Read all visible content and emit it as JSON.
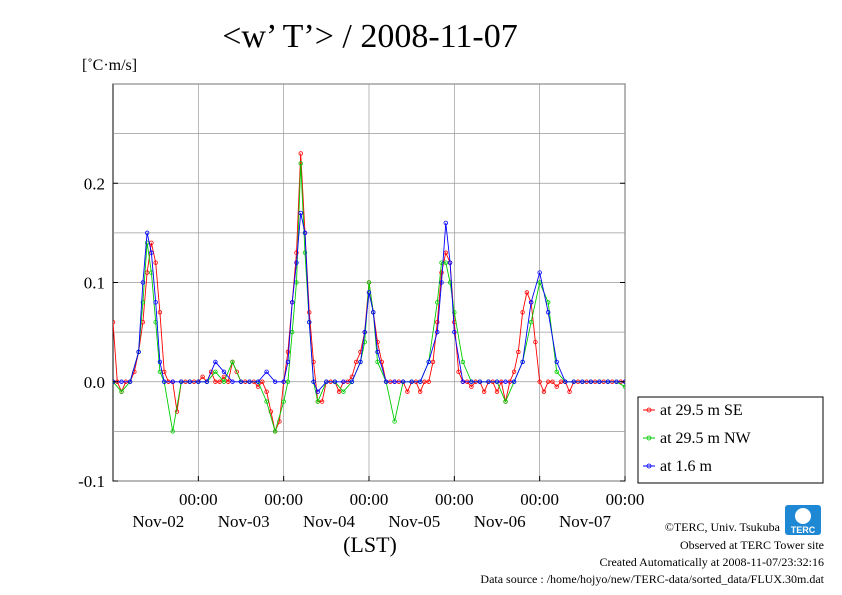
{
  "title": "<w’ T’> / 2008-11-07",
  "ylabel": "[˚C·m/s]",
  "xlabel": "(LST)",
  "credits": [
    "©TERC, Univ. Tsukuba",
    "Observed at TERC Tower site",
    "Created Automatically at 2008-11-07/23:32:16",
    "Data source : /home/hojyo/new/TERC-data/sorted_data/FLUX.30m.dat"
  ],
  "logo_text": "TERC",
  "chart_data": {
    "type": "line",
    "xlabel": "(LST)",
    "ylabel": "[˚C·m/s]",
    "ylim": [
      -0.1,
      0.3
    ],
    "xlim": [
      0,
      6
    ],
    "yticks": [
      {
        "value": -0.1,
        "label": "-0.1"
      },
      {
        "value": 0.0,
        "label": "0.0"
      },
      {
        "value": 0.1,
        "label": "0.1"
      },
      {
        "value": 0.2,
        "label": "0.2"
      }
    ],
    "xticks": [
      {
        "value": 1,
        "time": "00:00",
        "date": "Nov-02"
      },
      {
        "value": 2,
        "time": "00:00",
        "date": "Nov-03"
      },
      {
        "value": 3,
        "time": "00:00",
        "date": "Nov-04"
      },
      {
        "value": 4,
        "time": "00:00",
        "date": "Nov-05"
      },
      {
        "value": 5,
        "time": "00:00",
        "date": "Nov-06"
      },
      {
        "value": 6,
        "time": "00:00",
        "date": "Nov-07"
      }
    ],
    "grid": true,
    "legend_position": "right-bottom",
    "series": [
      {
        "name": "at 29.5 m SE",
        "color": "#ff0000",
        "x": [
          0.0,
          0.05,
          0.1,
          0.15,
          0.2,
          0.25,
          0.3,
          0.35,
          0.4,
          0.45,
          0.5,
          0.55,
          0.6,
          0.65,
          0.7,
          0.75,
          0.8,
          0.85,
          0.9,
          0.95,
          1.0,
          1.05,
          1.1,
          1.15,
          1.2,
          1.25,
          1.3,
          1.35,
          1.4,
          1.45,
          1.5,
          1.55,
          1.6,
          1.65,
          1.7,
          1.75,
          1.8,
          1.85,
          1.9,
          1.95,
          2.0,
          2.05,
          2.1,
          2.15,
          2.2,
          2.25,
          2.3,
          2.35,
          2.4,
          2.45,
          2.5,
          2.55,
          2.6,
          2.65,
          2.7,
          2.75,
          2.8,
          2.85,
          2.9,
          2.95,
          3.0,
          3.05,
          3.1,
          3.15,
          3.2,
          3.25,
          3.3,
          3.35,
          3.4,
          3.45,
          3.5,
          3.55,
          3.6,
          3.65,
          3.7,
          3.75,
          3.8,
          3.85,
          3.9,
          3.95,
          4.0,
          4.05,
          4.1,
          4.15,
          4.2,
          4.25,
          4.3,
          4.35,
          4.4,
          4.45,
          4.5,
          4.55,
          4.6,
          4.65,
          4.7,
          4.75,
          4.8,
          4.85,
          4.9,
          4.95,
          5.0,
          5.05,
          5.1,
          5.15,
          5.2,
          5.25,
          5.3,
          5.35,
          5.4,
          5.45,
          5.5,
          5.55,
          5.6,
          5.65,
          5.7,
          5.75,
          5.8,
          5.85,
          5.9,
          5.95,
          6.0
        ],
        "y": [
          0.06,
          0.0,
          -0.01,
          0.0,
          0.0,
          0.01,
          0.03,
          0.06,
          0.11,
          0.14,
          0.12,
          0.07,
          0.01,
          0.0,
          0.0,
          -0.03,
          0.0,
          0.0,
          0.0,
          0.0,
          0.0,
          0.005,
          0.0,
          0.01,
          0.0,
          0.0,
          0.005,
          0.0,
          0.02,
          0.01,
          0.0,
          0.0,
          0.0,
          0.0,
          -0.005,
          0.0,
          -0.01,
          -0.03,
          -0.05,
          -0.04,
          0.0,
          0.03,
          0.08,
          0.13,
          0.23,
          0.15,
          0.07,
          0.02,
          -0.02,
          -0.02,
          0.0,
          0.0,
          0.0,
          -0.01,
          0.0,
          0.0,
          0.005,
          0.02,
          0.03,
          0.05,
          0.1,
          0.07,
          0.04,
          0.02,
          0.0,
          0.0,
          0.0,
          0.0,
          0.0,
          -0.01,
          0.0,
          0.0,
          -0.01,
          0.0,
          0.0,
          0.02,
          0.06,
          0.11,
          0.13,
          0.12,
          0.06,
          0.01,
          0.0,
          0.0,
          -0.005,
          0.0,
          0.0,
          -0.01,
          0.0,
          0.0,
          -0.01,
          0.0,
          -0.02,
          0.0,
          0.01,
          0.03,
          0.07,
          0.09,
          0.08,
          0.04,
          0.0,
          -0.01,
          0.0,
          0.0,
          -0.005,
          0.0,
          0.0,
          -0.01,
          0.0,
          0.0,
          0.0,
          0.0,
          0.0,
          0.0,
          0.0,
          0.0,
          0.0,
          0.0,
          0.0,
          0.0,
          0.0
        ],
        "note": "values estimated from plot"
      },
      {
        "name": "at 29.5 m NW",
        "color": "#00cc00",
        "x": [
          0.0,
          0.1,
          0.2,
          0.3,
          0.35,
          0.4,
          0.45,
          0.5,
          0.55,
          0.6,
          0.7,
          0.8,
          0.9,
          1.0,
          1.1,
          1.2,
          1.3,
          1.4,
          1.5,
          1.6,
          1.7,
          1.8,
          1.9,
          2.0,
          2.05,
          2.1,
          2.15,
          2.2,
          2.25,
          2.3,
          2.35,
          2.4,
          2.5,
          2.6,
          2.7,
          2.8,
          2.9,
          2.95,
          3.0,
          3.05,
          3.1,
          3.2,
          3.3,
          3.4,
          3.5,
          3.6,
          3.7,
          3.8,
          3.85,
          3.9,
          3.95,
          4.0,
          4.1,
          4.2,
          4.3,
          4.4,
          4.5,
          4.6,
          4.7,
          4.8,
          4.9,
          5.0,
          5.1,
          5.2,
          5.3,
          5.4,
          5.5,
          5.6,
          5.7,
          5.8,
          5.9,
          6.0
        ],
        "y": [
          0.0,
          -0.01,
          0.0,
          0.03,
          0.08,
          0.14,
          0.11,
          0.06,
          0.01,
          0.0,
          -0.05,
          0.0,
          0.0,
          0.0,
          0.0,
          0.01,
          0.0,
          0.02,
          0.0,
          0.0,
          0.0,
          -0.02,
          -0.05,
          -0.02,
          0.0,
          0.05,
          0.1,
          0.22,
          0.13,
          0.06,
          0.0,
          -0.02,
          0.0,
          0.0,
          -0.01,
          0.0,
          0.02,
          0.04,
          0.1,
          0.07,
          0.02,
          0.0,
          -0.04,
          0.0,
          0.0,
          0.0,
          0.02,
          0.08,
          0.12,
          0.12,
          0.1,
          0.07,
          0.02,
          0.0,
          0.0,
          0.0,
          0.0,
          -0.02,
          0.0,
          0.02,
          0.06,
          0.1,
          0.08,
          0.01,
          0.0,
          0.0,
          0.0,
          0.0,
          0.0,
          0.0,
          0.0,
          -0.005
        ],
        "note": "values estimated from plot"
      },
      {
        "name": "at 1.6 m",
        "color": "#0000ff",
        "x": [
          0.0,
          0.1,
          0.2,
          0.3,
          0.35,
          0.4,
          0.45,
          0.5,
          0.55,
          0.6,
          0.7,
          0.8,
          0.9,
          1.0,
          1.1,
          1.2,
          1.3,
          1.4,
          1.5,
          1.6,
          1.7,
          1.8,
          1.9,
          2.0,
          2.05,
          2.1,
          2.15,
          2.2,
          2.25,
          2.3,
          2.35,
          2.4,
          2.5,
          2.6,
          2.7,
          2.8,
          2.9,
          2.95,
          3.0,
          3.05,
          3.1,
          3.2,
          3.3,
          3.4,
          3.5,
          3.6,
          3.7,
          3.8,
          3.85,
          3.9,
          3.95,
          4.0,
          4.1,
          4.2,
          4.3,
          4.4,
          4.5,
          4.6,
          4.7,
          4.8,
          4.9,
          5.0,
          5.1,
          5.2,
          5.3,
          5.4,
          5.5,
          5.6,
          5.7,
          5.8,
          5.9,
          6.0
        ],
        "y": [
          0.0,
          0.0,
          0.0,
          0.03,
          0.1,
          0.15,
          0.13,
          0.08,
          0.02,
          0.0,
          0.0,
          0.0,
          0.0,
          0.0,
          0.0,
          0.02,
          0.01,
          0.0,
          0.0,
          0.0,
          0.0,
          0.01,
          0.0,
          0.0,
          0.02,
          0.08,
          0.12,
          0.17,
          0.15,
          0.06,
          0.0,
          -0.01,
          0.0,
          0.0,
          0.0,
          0.0,
          0.02,
          0.05,
          0.09,
          0.07,
          0.03,
          0.0,
          0.0,
          0.0,
          0.0,
          0.0,
          0.02,
          0.05,
          0.1,
          0.16,
          0.12,
          0.05,
          0.0,
          0.0,
          0.0,
          0.0,
          0.0,
          0.0,
          0.0,
          0.02,
          0.08,
          0.11,
          0.07,
          0.02,
          0.0,
          0.0,
          0.0,
          0.0,
          0.0,
          0.0,
          0.0,
          0.0
        ],
        "note": "values estimated from plot"
      }
    ]
  }
}
